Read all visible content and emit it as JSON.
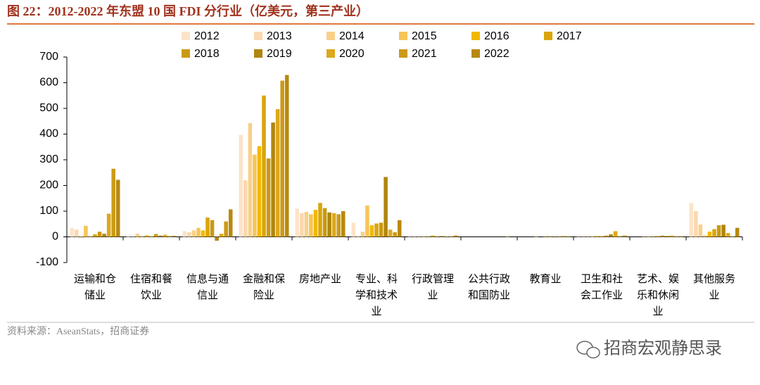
{
  "chart_data": {
    "type": "bar",
    "title": "图 22：2012-2022 年东盟 10 国 FDI 分行业（亿美元，第三产业）",
    "source": "资料来源：AseanStats，招商证券",
    "watermark": "招商宏观静思录",
    "categories": [
      "运输和仓储业",
      "住宿和餐饮业",
      "信息与通信业",
      "金融和保险业",
      "房地产业",
      "专业、科学和技术业",
      "行政管理业",
      "公共行政和国防业",
      "教育业",
      "卫生和社会工作业",
      "艺术、娱乐和休闲业",
      "其他服务业"
    ],
    "series": [
      {
        "name": "2012",
        "color": "#fde3c8",
        "values": [
          35,
          2,
          22,
          397,
          110,
          55,
          1,
          0,
          0,
          1,
          0,
          132
        ]
      },
      {
        "name": "2013",
        "color": "#fbd8b0",
        "values": [
          28,
          1,
          18,
          220,
          92,
          3,
          1,
          0,
          0,
          1,
          0,
          100
        ]
      },
      {
        "name": "2014",
        "color": "#f8d08a",
        "values": [
          -3,
          12,
          25,
          443,
          97,
          20,
          1,
          0,
          0,
          1,
          1,
          48
        ]
      },
      {
        "name": "2015",
        "color": "#f6c556",
        "values": [
          43,
          3,
          35,
          320,
          88,
          122,
          2,
          0,
          1,
          2,
          2,
          5
        ]
      },
      {
        "name": "2016",
        "color": "#f2b800",
        "values": [
          2,
          6,
          25,
          353,
          105,
          45,
          1,
          0,
          0,
          3,
          1,
          20
        ]
      },
      {
        "name": "2017",
        "color": "#d9a50a",
        "values": [
          10,
          2,
          75,
          550,
          132,
          52,
          5,
          0,
          1,
          2,
          3,
          30
        ]
      },
      {
        "name": "2018",
        "color": "#c99a12",
        "values": [
          20,
          11,
          65,
          305,
          112,
          55,
          1,
          0,
          2,
          5,
          5,
          45
        ]
      },
      {
        "name": "2019",
        "color": "#b08510",
        "values": [
          12,
          5,
          -15,
          445,
          95,
          233,
          3,
          0,
          1,
          10,
          3,
          47
        ]
      },
      {
        "name": "2020",
        "color": "#dca81c",
        "values": [
          90,
          8,
          12,
          497,
          92,
          28,
          1,
          0,
          1,
          22,
          5,
          15
        ]
      },
      {
        "name": "2021",
        "color": "#cc9a18",
        "values": [
          265,
          3,
          60,
          608,
          88,
          18,
          2,
          1,
          3,
          3,
          2,
          2
        ]
      },
      {
        "name": "2022",
        "color": "#b8890e",
        "values": [
          222,
          4,
          107,
          630,
          100,
          65,
          5,
          0,
          2,
          5,
          2,
          35
        ]
      }
    ],
    "ylim": [
      -100,
      700
    ],
    "yticks": [
      -100,
      0,
      100,
      200,
      300,
      400,
      500,
      600,
      700
    ]
  }
}
